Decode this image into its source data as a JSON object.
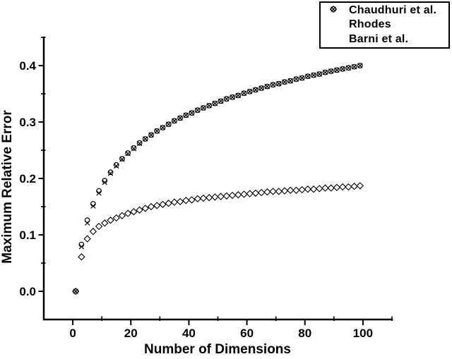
{
  "figure": {
    "background": "#ffffff",
    "foreground": "#000000"
  },
  "chart_data": {
    "type": "scatter",
    "title": "",
    "xlabel": "Number of Dimensions",
    "ylabel": "Maximum Relative Error",
    "xlim": [
      -10,
      110
    ],
    "ylim": [
      -0.05,
      0.45
    ],
    "grid": false,
    "legend_position": "top-right",
    "x_major_ticks": [
      0,
      20,
      40,
      60,
      80,
      100
    ],
    "x_tick_labels": [
      "0",
      "20",
      "40",
      "60",
      "80",
      "100"
    ],
    "x_minor_ticks": [
      10,
      30,
      50,
      70,
      90,
      110
    ],
    "y_major_ticks": [
      0.0,
      0.1,
      0.2,
      0.3,
      0.4
    ],
    "y_tick_labels": [
      "0.0",
      "0.1",
      "0.2",
      "0.3",
      "0.4"
    ],
    "y_minor_ticks": [
      0.05,
      0.15,
      0.25,
      0.35,
      0.45
    ],
    "x": [
      1,
      3,
      5,
      7,
      9,
      11,
      13,
      15,
      17,
      19,
      21,
      23,
      25,
      27,
      29,
      31,
      33,
      35,
      37,
      39,
      41,
      43,
      45,
      47,
      49,
      51,
      53,
      55,
      57,
      59,
      61,
      63,
      65,
      67,
      69,
      71,
      73,
      75,
      77,
      79,
      81,
      83,
      85,
      87,
      89,
      91,
      93,
      95,
      97,
      99
    ],
    "series": [
      {
        "name": "Chaudhuri et al.",
        "marker": "circle",
        "values": [
          0.0,
          0.083,
          0.126,
          0.155,
          0.178,
          0.196,
          0.211,
          0.224,
          0.235,
          0.245,
          0.254,
          0.263,
          0.27,
          0.277,
          0.284,
          0.29,
          0.296,
          0.302,
          0.307,
          0.312,
          0.316,
          0.321,
          0.325,
          0.329,
          0.333,
          0.337,
          0.341,
          0.344,
          0.347,
          0.351,
          0.354,
          0.357,
          0.36,
          0.363,
          0.366,
          0.368,
          0.371,
          0.373,
          0.376,
          0.378,
          0.381,
          0.383,
          0.385,
          0.388,
          0.39,
          0.392,
          0.394,
          0.396,
          0.398,
          0.4
        ]
      },
      {
        "name": "Rhodes",
        "marker": "x",
        "values": [
          0.0,
          0.079,
          0.121,
          0.151,
          0.174,
          0.193,
          0.209,
          0.222,
          0.234,
          0.244,
          0.253,
          0.262,
          0.27,
          0.277,
          0.284,
          0.29,
          0.296,
          0.302,
          0.307,
          0.312,
          0.316,
          0.321,
          0.325,
          0.329,
          0.333,
          0.337,
          0.341,
          0.344,
          0.347,
          0.351,
          0.354,
          0.357,
          0.36,
          0.363,
          0.366,
          0.368,
          0.371,
          0.373,
          0.376,
          0.378,
          0.381,
          0.383,
          0.385,
          0.388,
          0.39,
          0.392,
          0.394,
          0.396,
          0.398,
          0.4
        ]
      },
      {
        "name": "Barni et al.",
        "marker": "diamond",
        "values": [
          0.0,
          0.061,
          0.093,
          0.106,
          0.115,
          0.121,
          0.126,
          0.13,
          0.134,
          0.138,
          0.141,
          0.144,
          0.147,
          0.15,
          0.152,
          0.154,
          0.156,
          0.158,
          0.159,
          0.161,
          0.162,
          0.164,
          0.165,
          0.166,
          0.167,
          0.168,
          0.169,
          0.17,
          0.171,
          0.172,
          0.173,
          0.174,
          0.175,
          0.176,
          0.177,
          0.177,
          0.178,
          0.179,
          0.179,
          0.18,
          0.181,
          0.181,
          0.182,
          0.183,
          0.183,
          0.184,
          0.185,
          0.185,
          0.186,
          0.187
        ]
      }
    ]
  }
}
